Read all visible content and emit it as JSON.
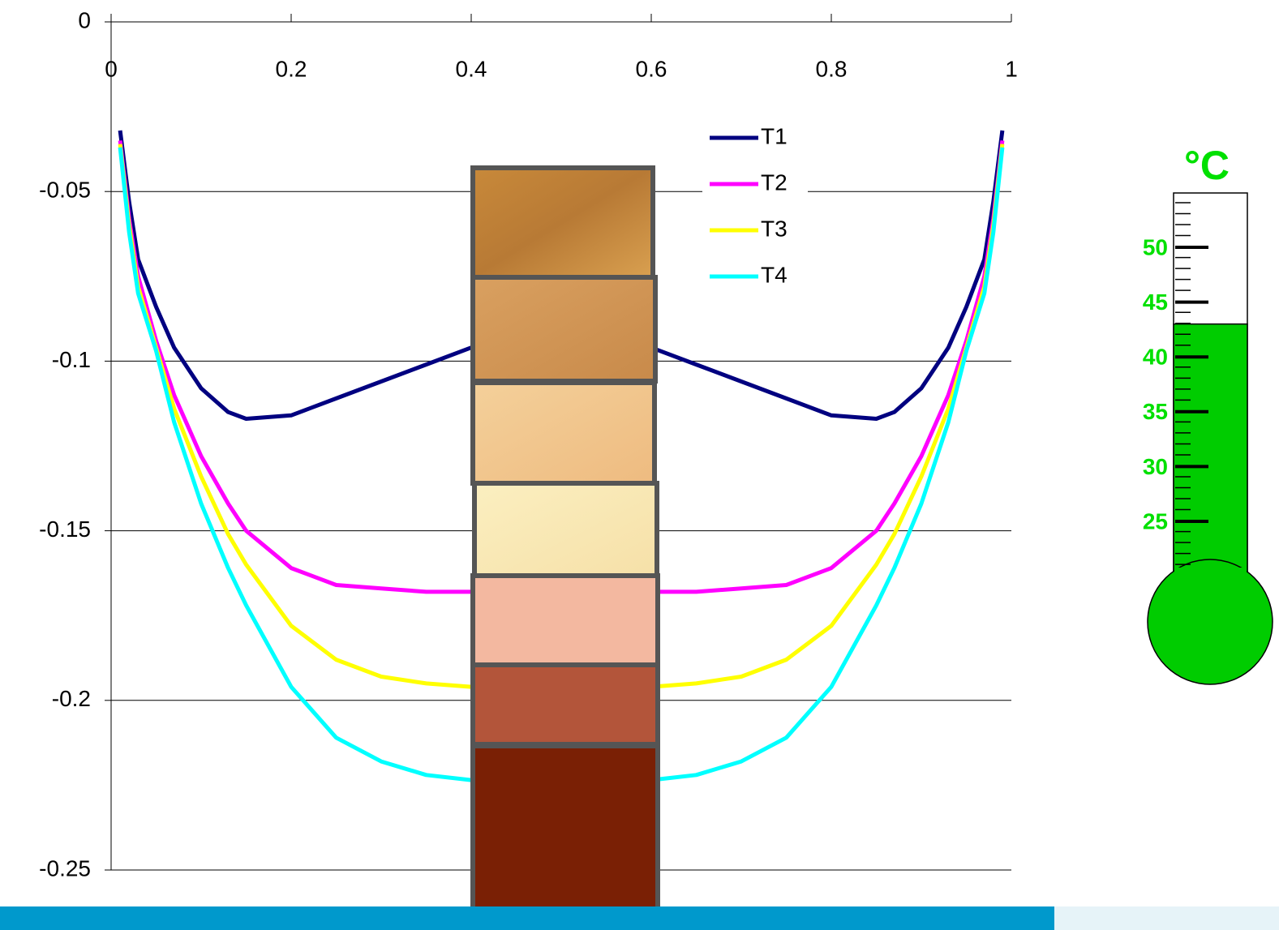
{
  "chart_data": {
    "type": "line",
    "x": [
      0.01,
      0.02,
      0.03,
      0.05,
      0.07,
      0.1,
      0.13,
      0.15,
      0.2,
      0.25,
      0.3,
      0.35,
      0.4,
      0.45,
      0.5,
      0.55,
      0.6,
      0.65,
      0.7,
      0.75,
      0.8,
      0.85,
      0.87,
      0.9,
      0.93,
      0.95,
      0.97,
      0.98,
      0.99
    ],
    "series": [
      {
        "name": "T1",
        "color": "#000080",
        "values": [
          -0.032,
          -0.053,
          -0.07,
          -0.084,
          -0.096,
          -0.108,
          -0.115,
          -0.117,
          -0.116,
          -0.111,
          -0.106,
          -0.101,
          -0.096,
          -0.094,
          -0.093,
          -0.094,
          -0.096,
          -0.101,
          -0.106,
          -0.111,
          -0.116,
          -0.117,
          -0.115,
          -0.108,
          -0.096,
          -0.084,
          -0.07,
          -0.053,
          -0.032
        ]
      },
      {
        "name": "T2",
        "color": "#ff00ff",
        "values": [
          -0.035,
          -0.058,
          -0.075,
          -0.094,
          -0.11,
          -0.128,
          -0.142,
          -0.15,
          -0.161,
          -0.166,
          -0.167,
          -0.168,
          -0.168,
          -0.168,
          -0.168,
          -0.168,
          -0.168,
          -0.168,
          -0.167,
          -0.166,
          -0.161,
          -0.15,
          -0.142,
          -0.128,
          -0.11,
          -0.094,
          -0.075,
          -0.058,
          -0.035
        ]
      },
      {
        "name": "T3",
        "color": "#ffff00",
        "values": [
          -0.036,
          -0.06,
          -0.078,
          -0.096,
          -0.114,
          -0.134,
          -0.151,
          -0.16,
          -0.178,
          -0.188,
          -0.193,
          -0.195,
          -0.196,
          -0.197,
          -0.197,
          -0.197,
          -0.196,
          -0.195,
          -0.193,
          -0.188,
          -0.178,
          -0.16,
          -0.151,
          -0.134,
          -0.114,
          -0.096,
          -0.078,
          -0.06,
          -0.036
        ]
      },
      {
        "name": "T4",
        "color": "#00ffff",
        "values": [
          -0.037,
          -0.062,
          -0.08,
          -0.097,
          -0.118,
          -0.142,
          -0.161,
          -0.172,
          -0.196,
          -0.211,
          -0.218,
          -0.222,
          -0.2235,
          -0.2245,
          -0.225,
          -0.2245,
          -0.2235,
          -0.222,
          -0.218,
          -0.211,
          -0.196,
          -0.172,
          -0.161,
          -0.142,
          -0.118,
          -0.097,
          -0.08,
          -0.062,
          -0.037
        ]
      }
    ],
    "xlim": [
      0,
      1
    ],
    "xticks": [
      0,
      0.2,
      0.4,
      0.6,
      0.8,
      1
    ],
    "ylim": [
      -0.25,
      0
    ],
    "yticks": [
      0,
      -0.05,
      -0.1,
      -0.15,
      -0.2,
      -0.25
    ],
    "grid": true,
    "thermometer": {
      "unit": "°C",
      "labels": [
        50,
        45,
        40,
        35,
        30,
        25
      ],
      "level": 43,
      "color": "#00cc00",
      "label_color": "#00e000"
    }
  }
}
